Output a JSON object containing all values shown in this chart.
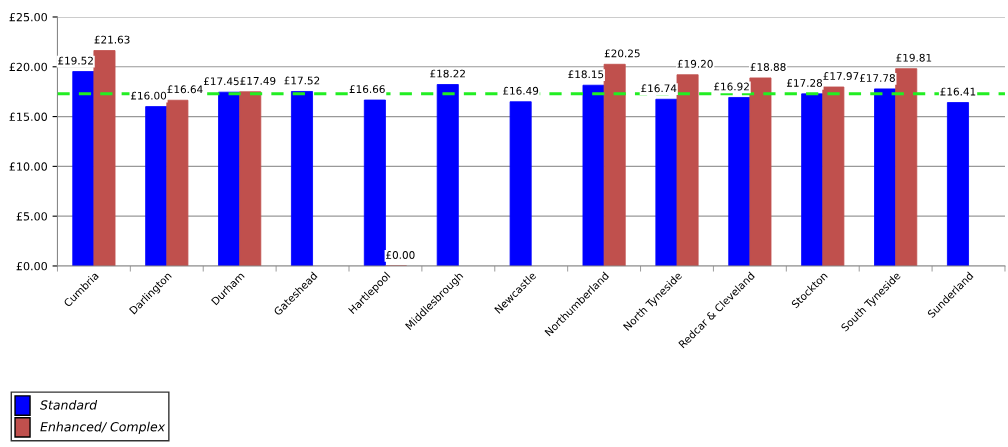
{
  "chart_data": {
    "type": "bar",
    "categories": [
      "Cumbria",
      "Darlington",
      "Durham",
      "Gateshead",
      "Hartlepool",
      "Middlesbrough",
      "Newcastle",
      "Northumberland",
      "North Tyneside",
      "Redcar & Cleveland",
      "Stockton",
      "South Tyneside",
      "Sunderland"
    ],
    "series": [
      {
        "name": "Standard",
        "color": "#0000ff",
        "values": [
          19.52,
          16.0,
          17.45,
          17.52,
          16.66,
          18.22,
          16.49,
          18.15,
          16.74,
          16.92,
          17.28,
          17.78,
          16.41
        ],
        "value_labels": [
          "£19.52",
          "£16.00",
          "£17.45",
          "£17.52",
          "£16.66",
          "£18.22",
          "£16.49",
          "£18.15",
          "£16.74",
          "£16.92",
          "£17.28",
          "£17.78",
          "£16.41"
        ]
      },
      {
        "name": "Enhanced/ Complex",
        "color": "#c0504d",
        "values": [
          21.63,
          16.64,
          17.49,
          null,
          0.0,
          null,
          null,
          20.25,
          19.2,
          18.88,
          17.97,
          19.81,
          null
        ],
        "value_labels": [
          "£21.63",
          "£16.64",
          "£17.49",
          null,
          "£0.00",
          null,
          null,
          "£20.25",
          "£19.20",
          "£18.88",
          "£17.97",
          "£19.81",
          null
        ]
      }
    ],
    "ylim": [
      0,
      25
    ],
    "yticks": [
      {
        "value": 0,
        "label": "£0.00"
      },
      {
        "value": 5,
        "label": "£5.00"
      },
      {
        "value": 10,
        "label": "£10.00"
      },
      {
        "value": 15,
        "label": "£15.00"
      },
      {
        "value": 20,
        "label": "£20.00"
      },
      {
        "value": 25,
        "label": "£25.00"
      }
    ],
    "ref_lines": [
      {
        "axis": "y",
        "value": 17.3,
        "color": "#22ee22",
        "line_style": "dashed"
      }
    ],
    "grid": "y",
    "legend": "bottom left"
  }
}
